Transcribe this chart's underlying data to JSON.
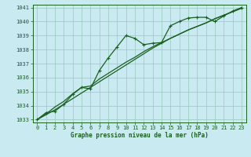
{
  "title": "Graphe pression niveau de la mer (hPa)",
  "background_color": "#c8eaf0",
  "plot_bg_color": "#c8eaf0",
  "grid_color": "#98c8b8",
  "line_color": "#1a6020",
  "xlim": [
    -0.5,
    23.5
  ],
  "ylim": [
    1032.8,
    1041.2
  ],
  "ytick_vals": [
    1033,
    1034,
    1035,
    1036,
    1037,
    1038,
    1039,
    1040,
    1041
  ],
  "xtick_vals": [
    0,
    1,
    2,
    3,
    4,
    5,
    6,
    7,
    8,
    9,
    10,
    11,
    12,
    13,
    14,
    15,
    16,
    17,
    18,
    19,
    20,
    21,
    22,
    23
  ],
  "series1_x": [
    0,
    1,
    2,
    3,
    4,
    5,
    6,
    7,
    8,
    9,
    10,
    11,
    12,
    13,
    14,
    15,
    16,
    17,
    18,
    19,
    20,
    21,
    22,
    23
  ],
  "series1_y": [
    1033.0,
    1033.5,
    1033.6,
    1034.1,
    1034.8,
    1035.3,
    1035.2,
    1036.5,
    1037.4,
    1038.2,
    1039.0,
    1038.8,
    1038.35,
    1038.45,
    1038.5,
    1039.7,
    1040.0,
    1040.25,
    1040.3,
    1040.3,
    1040.0,
    1040.4,
    1040.75,
    1041.0
  ],
  "series2_x": [
    0,
    1,
    2,
    3,
    4,
    5,
    6,
    7,
    8,
    9,
    10,
    11,
    12,
    13,
    14,
    15,
    16,
    17,
    18,
    19,
    20,
    21,
    22,
    23
  ],
  "series2_y": [
    1033.0,
    1033.4,
    1033.9,
    1034.3,
    1034.85,
    1035.3,
    1035.4,
    1035.9,
    1036.3,
    1036.7,
    1037.1,
    1037.45,
    1037.85,
    1038.2,
    1038.5,
    1038.8,
    1039.1,
    1039.4,
    1039.65,
    1039.9,
    1040.2,
    1040.45,
    1040.7,
    1040.95
  ],
  "series3_x": [
    0,
    1,
    2,
    3,
    4,
    5,
    6,
    7,
    8,
    9,
    10,
    11,
    12,
    13,
    14,
    15,
    16,
    17,
    18,
    19,
    20,
    21,
    22,
    23
  ],
  "series3_y": [
    1033.0,
    1033.35,
    1033.7,
    1034.1,
    1034.5,
    1034.9,
    1035.3,
    1035.7,
    1036.1,
    1036.5,
    1036.9,
    1037.3,
    1037.7,
    1038.1,
    1038.45,
    1038.8,
    1039.1,
    1039.4,
    1039.65,
    1039.9,
    1040.2,
    1040.45,
    1040.7,
    1040.95
  ],
  "tick_fontsize": 5,
  "label_fontsize": 5.5,
  "linewidth": 0.9,
  "markersize": 2.5
}
